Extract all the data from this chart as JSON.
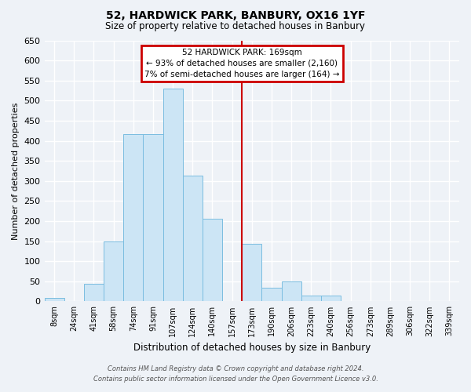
{
  "title": "52, HARDWICK PARK, BANBURY, OX16 1YF",
  "subtitle": "Size of property relative to detached houses in Banbury",
  "xlabel": "Distribution of detached houses by size in Banbury",
  "ylabel": "Number of detached properties",
  "bar_labels": [
    "8sqm",
    "24sqm",
    "41sqm",
    "58sqm",
    "74sqm",
    "91sqm",
    "107sqm",
    "124sqm",
    "140sqm",
    "157sqm",
    "173sqm",
    "190sqm",
    "206sqm",
    "223sqm",
    "240sqm",
    "256sqm",
    "273sqm",
    "289sqm",
    "306sqm",
    "322sqm",
    "339sqm"
  ],
  "bar_values": [
    8,
    0,
    44,
    150,
    416,
    416,
    530,
    313,
    205,
    0,
    144,
    35,
    50,
    15,
    15,
    0,
    0,
    0,
    0,
    0,
    0
  ],
  "bar_color": "#cce5f5",
  "bar_edge_color": "#7abde0",
  "ylim": [
    0,
    650
  ],
  "yticks": [
    0,
    50,
    100,
    150,
    200,
    250,
    300,
    350,
    400,
    450,
    500,
    550,
    600,
    650
  ],
  "vline_color": "#cc0000",
  "annotation_title": "52 HARDWICK PARK: 169sqm",
  "annotation_line1": "← 93% of detached houses are smaller (2,160)",
  "annotation_line2": "7% of semi-detached houses are larger (164) →",
  "annotation_box_color": "#cc0000",
  "footer_line1": "Contains HM Land Registry data © Crown copyright and database right 2024.",
  "footer_line2": "Contains public sector information licensed under the Open Government Licence v3.0.",
  "background_color": "#eef2f7",
  "grid_color": "#ffffff"
}
